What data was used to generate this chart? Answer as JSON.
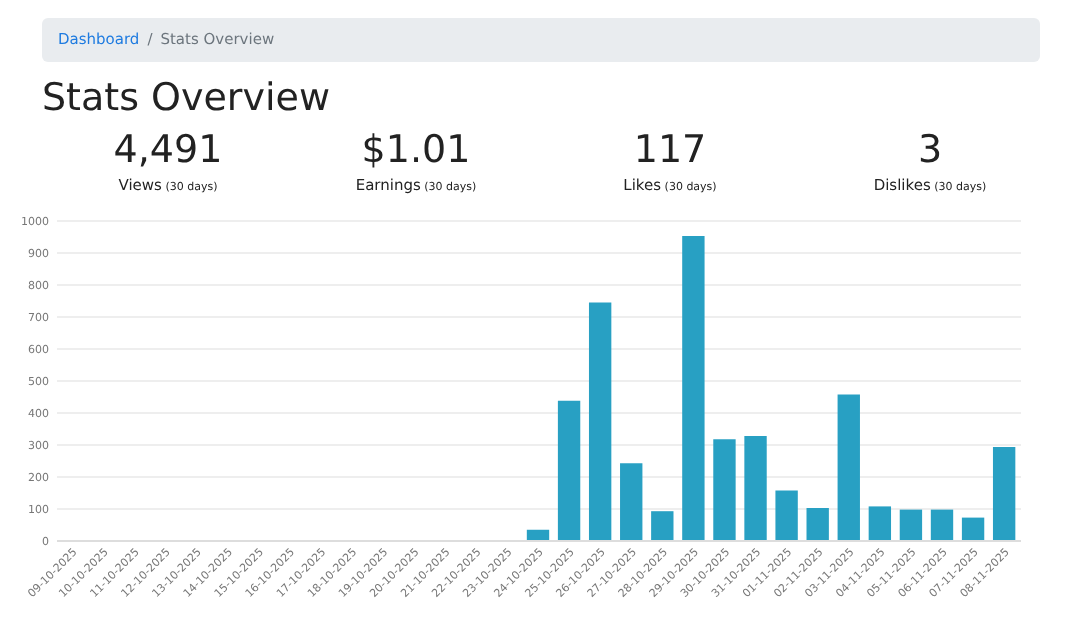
{
  "chart_data": {
    "type": "bar",
    "title": "Stats Overview",
    "annotations": [
      "Dashboard",
      "/",
      "Stats Overview",
      "4,491",
      "Views",
      "(30 days)",
      "$1.01",
      "Earnings",
      "(30 days)",
      "117",
      "Likes",
      "(30 days)",
      "3",
      "Dislikes",
      "(30 days)"
    ],
    "categories": [
      "09-10-2025",
      "10-10-2025",
      "11-10-2025",
      "12-10-2025",
      "13-10-2025",
      "14-10-2025",
      "15-10-2025",
      "16-10-2025",
      "17-10-2025",
      "18-10-2025",
      "19-10-2025",
      "20-10-2025",
      "21-10-2025",
      "22-10-2025",
      "23-10-2025",
      "24-10-2025",
      "25-10-2025",
      "26-10-2025",
      "27-10-2025",
      "28-10-2025",
      "29-10-2025",
      "30-10-2025",
      "31-10-2025",
      "01-11-2025",
      "02-11-2025",
      "03-11-2025",
      "04-11-2025",
      "05-11-2025",
      "06-11-2025",
      "07-11-2025",
      "08-11-2025"
    ],
    "values": [
      0,
      0,
      0,
      0,
      0,
      0,
      0,
      0,
      0,
      0,
      0,
      0,
      0,
      0,
      0,
      32,
      435,
      742,
      240,
      90,
      950,
      315,
      325,
      155,
      100,
      455,
      105,
      95,
      95,
      70,
      291
    ],
    "color": "#28a0c3",
    "ylim": [
      0,
      1000
    ],
    "yticks": [
      0,
      100,
      200,
      300,
      400,
      500,
      600,
      700,
      800,
      900,
      1000
    ],
    "grid": "y"
  }
}
